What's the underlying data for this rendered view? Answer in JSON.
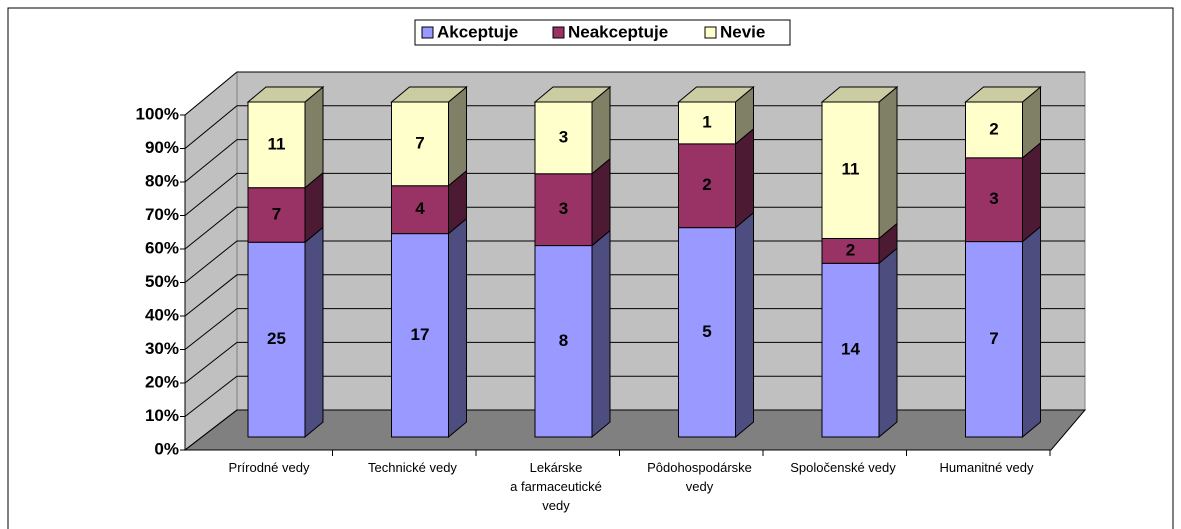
{
  "chart_data": {
    "type": "bar",
    "stacking": "percent",
    "three_d": true,
    "categories": [
      "Prírodné vedy",
      "Technické vedy",
      "Lekárske\na farmaceutické\nvedy",
      "Pôdohospodárske\nvedy",
      "Spoločenské vedy",
      "Humanitné vedy"
    ],
    "series": [
      {
        "name": "Akceptuje",
        "color": "#9999ff",
        "values": [
          25,
          17,
          8,
          5,
          14,
          7
        ]
      },
      {
        "name": "Neakceptuje",
        "color": "#993366",
        "values": [
          7,
          4,
          3,
          2,
          2,
          3
        ]
      },
      {
        "name": "Nevie",
        "color": "#ffffcc",
        "values": [
          11,
          7,
          3,
          1,
          11,
          2
        ]
      }
    ],
    "ylim": [
      0,
      100
    ],
    "yticks": [
      {
        "value": 0,
        "label": "0%"
      },
      {
        "value": 10,
        "label": "10%"
      },
      {
        "value": 20,
        "label": "20%"
      },
      {
        "value": 30,
        "label": "30%"
      },
      {
        "value": 40,
        "label": "40%"
      },
      {
        "value": 50,
        "label": "50%"
      },
      {
        "value": 60,
        "label": "60%"
      },
      {
        "value": 70,
        "label": "70%"
      },
      {
        "value": 80,
        "label": "80%"
      },
      {
        "value": 90,
        "label": "90%"
      },
      {
        "value": 100,
        "label": "100%"
      }
    ],
    "grid": true,
    "legend": "top"
  }
}
